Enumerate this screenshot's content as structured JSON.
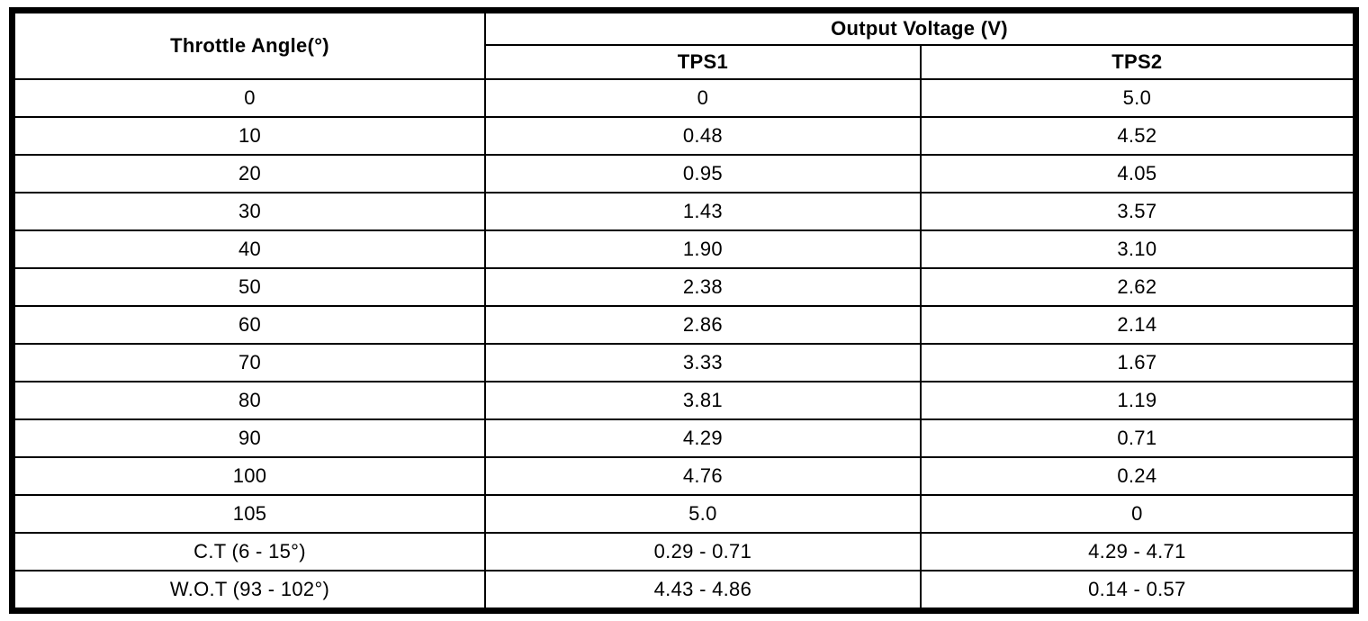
{
  "table": {
    "col1_header": "Throttle Angle(°)",
    "group_header": "Output Voltage (V)",
    "sub_headers": [
      "TPS1",
      "TPS2"
    ],
    "rows": [
      {
        "angle": "0",
        "tps1": "0",
        "tps2": "5.0"
      },
      {
        "angle": "10",
        "tps1": "0.48",
        "tps2": "4.52"
      },
      {
        "angle": "20",
        "tps1": "0.95",
        "tps2": "4.05"
      },
      {
        "angle": "30",
        "tps1": "1.43",
        "tps2": "3.57"
      },
      {
        "angle": "40",
        "tps1": "1.90",
        "tps2": "3.10"
      },
      {
        "angle": "50",
        "tps1": "2.38",
        "tps2": "2.62"
      },
      {
        "angle": "60",
        "tps1": "2.86",
        "tps2": "2.14"
      },
      {
        "angle": "70",
        "tps1": "3.33",
        "tps2": "1.67"
      },
      {
        "angle": "80",
        "tps1": "3.81",
        "tps2": "1.19"
      },
      {
        "angle": "90",
        "tps1": "4.29",
        "tps2": "0.71"
      },
      {
        "angle": "100",
        "tps1": "4.76",
        "tps2": "0.24"
      },
      {
        "angle": "105",
        "tps1": "5.0",
        "tps2": "0"
      },
      {
        "angle": "C.T (6 - 15°)",
        "tps1": "0.29 - 0.71",
        "tps2": "4.29 - 4.71"
      },
      {
        "angle": "W.O.T (93 - 102°)",
        "tps1": "4.43 - 4.86",
        "tps2": "0.14 - 0.57"
      }
    ]
  }
}
